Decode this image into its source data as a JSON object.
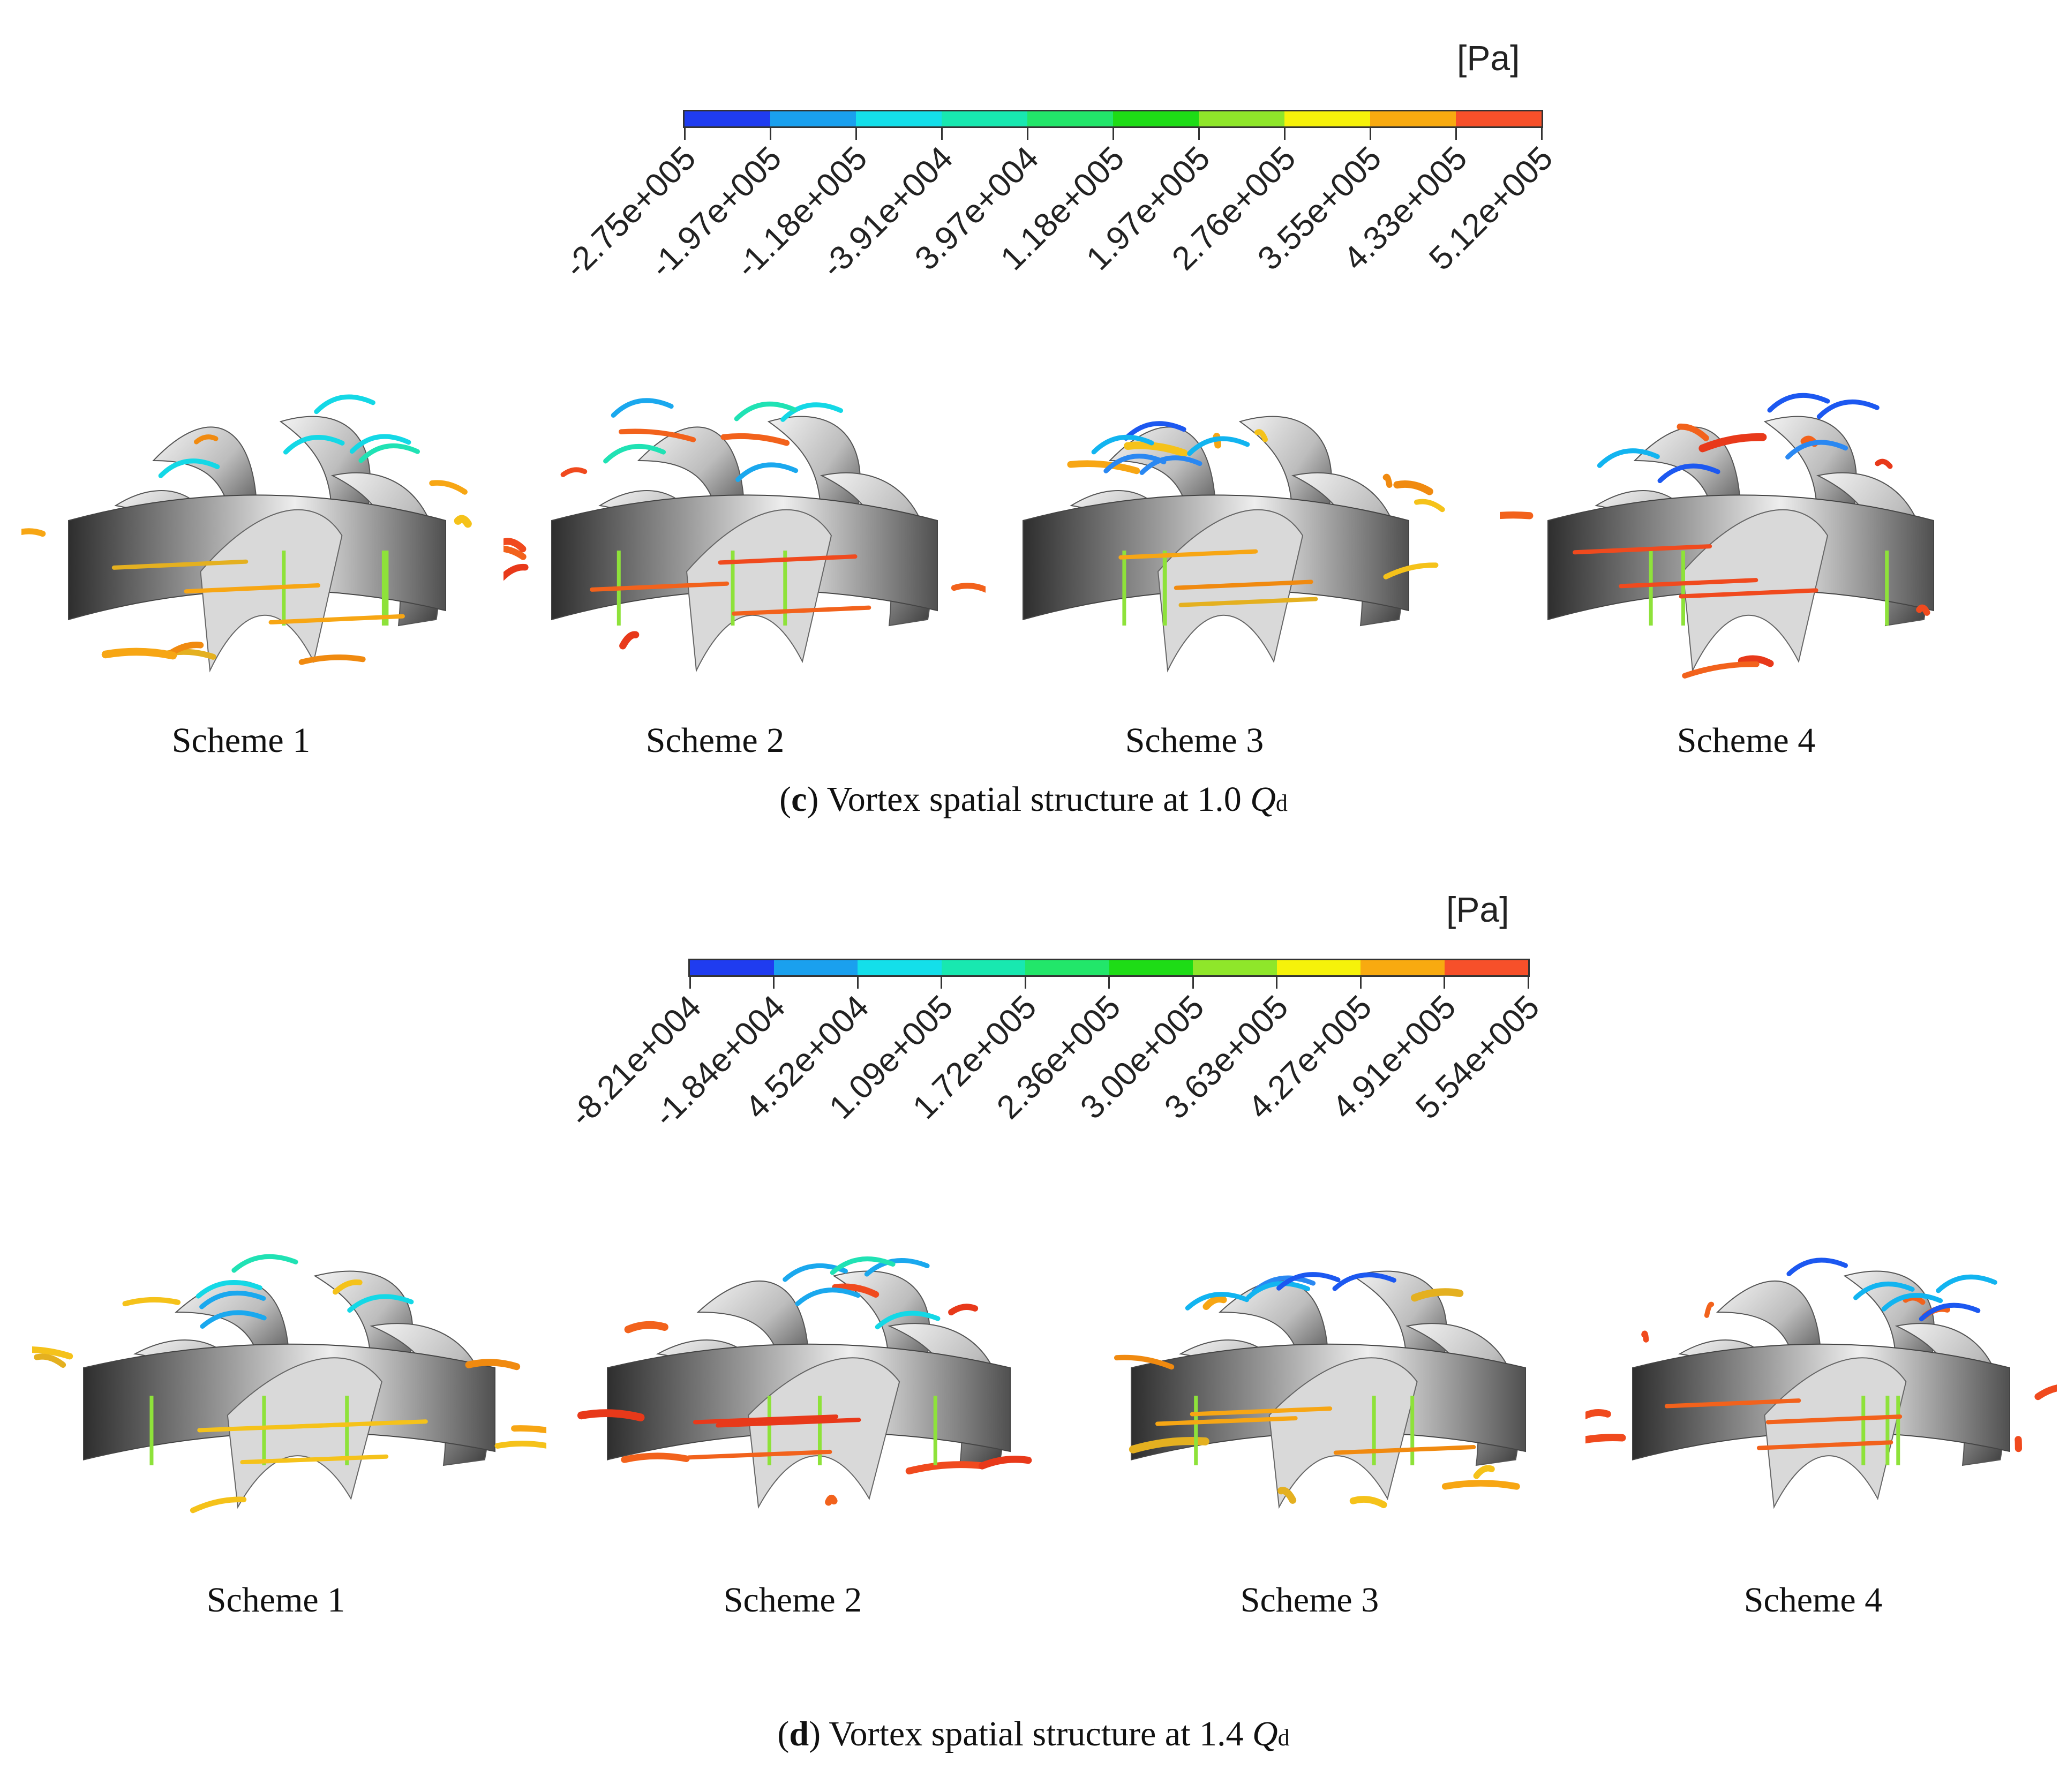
{
  "colormap": [
    "#1f3cf0",
    "#1aa0ee",
    "#14dfea",
    "#18e8b0",
    "#22e66a",
    "#1edc16",
    "#8fe62a",
    "#f6f20a",
    "#f8aa10",
    "#f7502a"
  ],
  "panel_c": {
    "unit": "[Pa]",
    "ticks": [
      "-2.75e+005",
      "-1.97e+005",
      "-1.18e+005",
      "-3.91e+004",
      "3.97e+004",
      "1.18e+005",
      "1.97e+005",
      "2.76e+005",
      "3.55e+005",
      "4.33e+005",
      "5.12e+005"
    ],
    "schemes": [
      "Scheme 1",
      "Scheme 2",
      "Scheme 3",
      "Scheme 4"
    ],
    "caption": {
      "letter": "c",
      "text": "Vortex spatial structure at 1.0",
      "q": "Q",
      "sub": "d"
    }
  },
  "panel_d": {
    "unit": "[Pa]",
    "ticks": [
      "-8.21e+004",
      "-1.84e+004",
      "4.52e+004",
      "1.09e+005",
      "1.72e+005",
      "2.36e+005",
      "3.00e+005",
      "3.63e+005",
      "4.27e+005",
      "4.91e+005",
      "5.54e+005"
    ],
    "schemes": [
      "Scheme 1",
      "Scheme 2",
      "Scheme 3",
      "Scheme 4"
    ],
    "caption": {
      "letter": "d",
      "text": "Vortex spatial structure at 1.4",
      "q": "Q",
      "sub": "d"
    }
  }
}
